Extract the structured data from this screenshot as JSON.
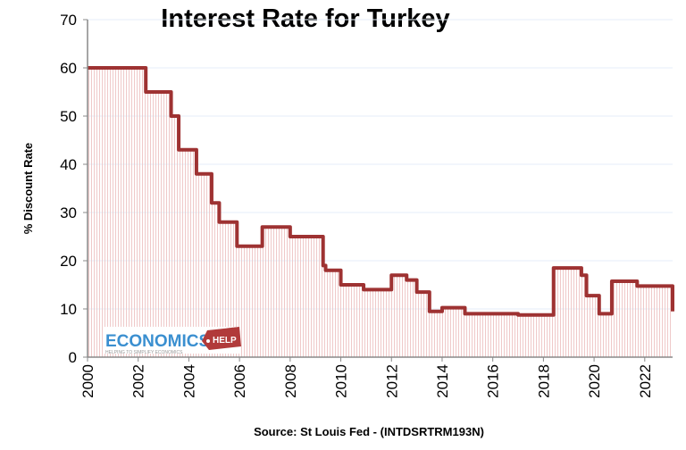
{
  "chart_data": {
    "type": "area",
    "title": "Interest Rate for Turkey",
    "xlabel": "",
    "ylabel": "% Discount Rate",
    "source": "Source: St Louis Fed - (INTDSRTRM193N)",
    "xlim": [
      2000,
      2023.1
    ],
    "ylim": [
      0,
      70
    ],
    "x_ticks": [
      "2000",
      "2002",
      "2004",
      "2006",
      "2008",
      "2010",
      "2012",
      "2014",
      "2016",
      "2018",
      "2020",
      "2022"
    ],
    "y_ticks": [
      "0",
      "10",
      "20",
      "30",
      "40",
      "50",
      "60",
      "70"
    ],
    "grid": true,
    "step": true,
    "line_color": "#9e3232",
    "fill_color": "#f3d6d6",
    "series": [
      {
        "x": [
          2000,
          2002.3,
          2003.3,
          2003.6,
          2004.3,
          2004.9,
          2005.2,
          2005.9,
          2006.9,
          2008.0,
          2009.3,
          2009.4,
          2010.0,
          2010.9,
          2012.0,
          2012.6,
          2013.0,
          2013.5,
          2014.0,
          2014.9,
          2017.0,
          2018.4,
          2019.5,
          2019.7,
          2020.2,
          2020.7,
          2021.7,
          2023.0,
          2023.1
        ],
        "y": [
          60,
          55,
          50,
          43,
          38,
          32,
          28,
          23,
          27,
          25,
          19,
          18,
          15,
          14,
          17,
          16,
          13.5,
          9.5,
          10.25,
          9,
          8.75,
          18.5,
          17,
          12.75,
          9,
          15.75,
          14.75,
          14.75,
          9.5
        ]
      }
    ]
  },
  "logo": {
    "main": "ECONOMICS",
    "tag": "HELP",
    "tagline": "HELPING TO SIMPLIFY ECONOMICS"
  }
}
